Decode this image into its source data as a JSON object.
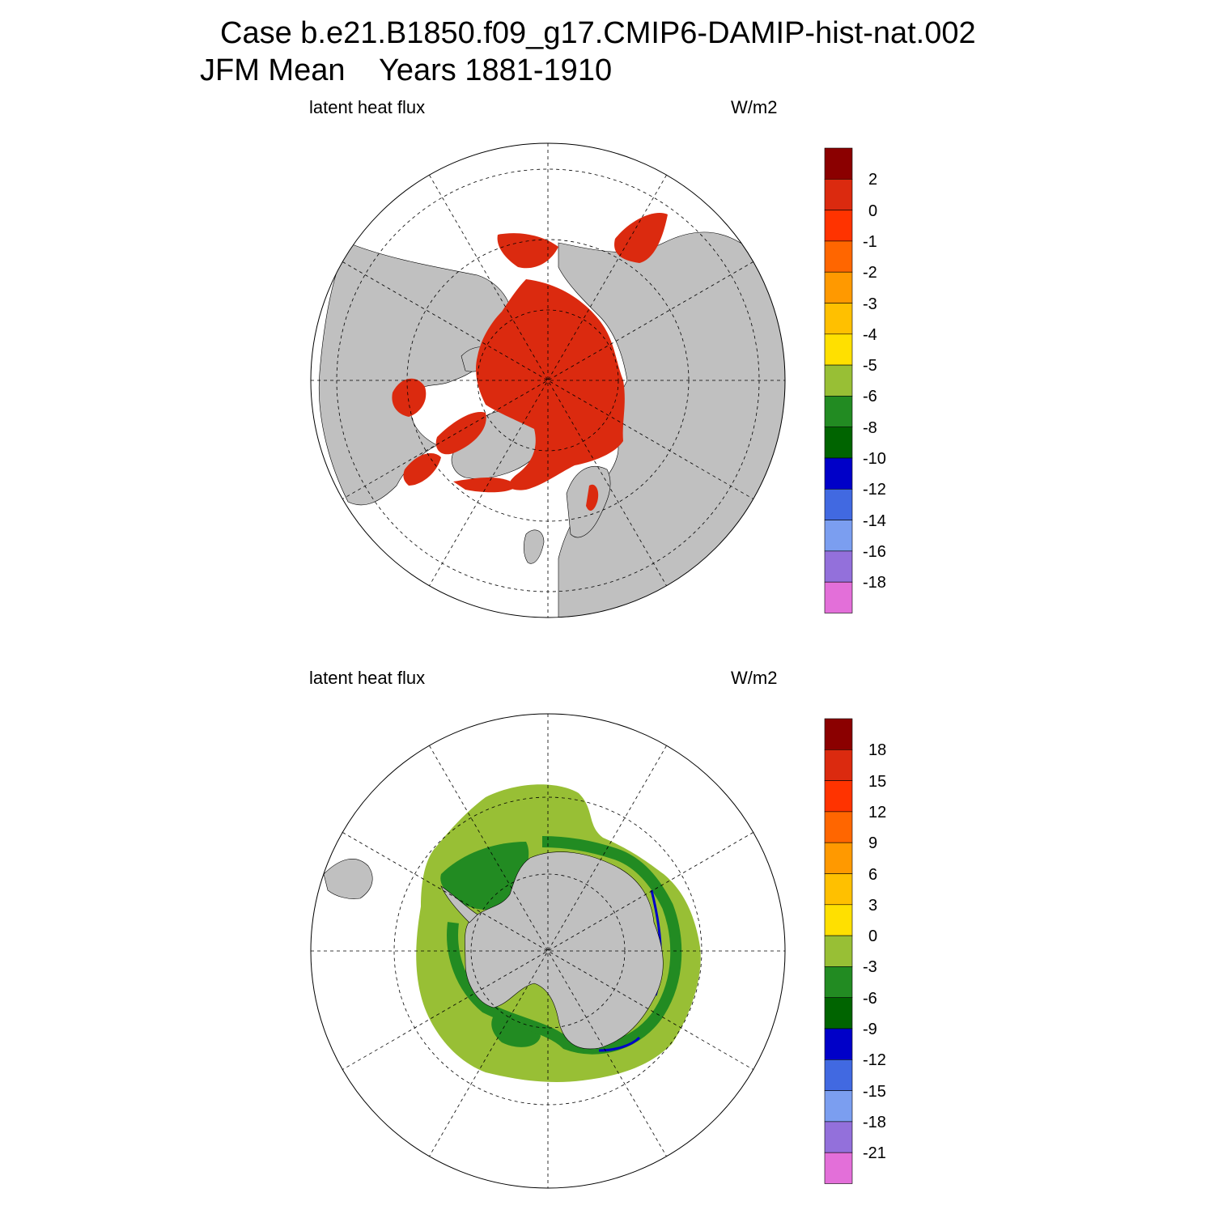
{
  "title": {
    "line1": "Case b.e21.B1850.f09_g17.CMIP6-DAMIP-hist-nat.002",
    "line2": "JFM Mean    Years 1881-1910"
  },
  "colors": {
    "land": "#c0c0c0",
    "background": "#ffffff",
    "line": "#000000"
  },
  "panels": [
    {
      "hemisphere": "north",
      "left_label": "latent heat flux",
      "right_label": "W/m2",
      "field_color": "#db2a0f",
      "colorbar": {
        "colors": [
          "#8b0000",
          "#db2a0f",
          "#ff3300",
          "#ff6600",
          "#ff9900",
          "#ffc000",
          "#ffe000",
          "#98bf35",
          "#228b22",
          "#006400",
          "#0000c8",
          "#4169e1",
          "#7b9ef0",
          "#9370db",
          "#e36fd9"
        ],
        "labels": [
          "2",
          "0",
          "-1",
          "-2",
          "-3",
          "-4",
          "-5",
          "-6",
          "-8",
          "-10",
          "-12",
          "-14",
          "-16",
          "-18"
        ]
      }
    },
    {
      "hemisphere": "south",
      "left_label": "latent heat flux",
      "right_label": "W/m2",
      "field_color": "#98bf35",
      "colorbar": {
        "colors": [
          "#8b0000",
          "#db2a0f",
          "#ff3300",
          "#ff6600",
          "#ff9900",
          "#ffc000",
          "#ffe000",
          "#98bf35",
          "#228b22",
          "#006400",
          "#0000c8",
          "#4169e1",
          "#7b9ef0",
          "#9370db",
          "#e36fd9"
        ],
        "labels": [
          "18",
          "15",
          "12",
          "9",
          "6",
          "3",
          "0",
          "-3",
          "-6",
          "-9",
          "-12",
          "-15",
          "-18",
          "-21"
        ]
      }
    }
  ]
}
